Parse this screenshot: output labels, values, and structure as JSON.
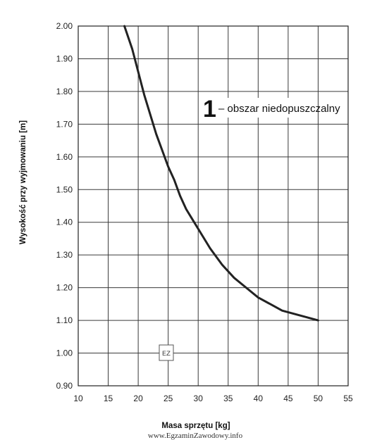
{
  "chart_data": {
    "type": "line",
    "title": "",
    "xlabel": "Masa sprzętu [kg]",
    "ylabel": "Wysokość przy wyjmowaniu [m]",
    "xlim": [
      10,
      55
    ],
    "ylim": [
      0.9,
      2.0
    ],
    "xticks": [
      10,
      15,
      20,
      25,
      30,
      35,
      40,
      45,
      50,
      55
    ],
    "yticks": [
      0.9,
      1.0,
      1.1,
      1.2,
      1.3,
      1.4,
      1.5,
      1.6,
      1.7,
      1.8,
      1.9,
      2.0
    ],
    "xtick_labels": [
      "10",
      "15",
      "20",
      "25",
      "30",
      "35",
      "40",
      "45",
      "50",
      "55"
    ],
    "ytick_labels": [
      "0.90",
      "1.00",
      "1.10",
      "1.20",
      "1.30",
      "1.40",
      "1.50",
      "1.60",
      "1.70",
      "1.80",
      "1.90",
      "2.00"
    ],
    "grid": true,
    "series": [
      {
        "x": [
          17.7,
          19,
          20,
          21,
          22,
          23,
          24,
          25,
          26,
          27,
          28,
          29,
          30,
          32,
          34,
          36,
          38,
          40,
          42,
          44,
          46,
          48,
          50
        ],
        "y": [
          2.0,
          1.93,
          1.86,
          1.79,
          1.73,
          1.67,
          1.62,
          1.57,
          1.53,
          1.48,
          1.44,
          1.41,
          1.38,
          1.32,
          1.27,
          1.23,
          1.2,
          1.17,
          1.15,
          1.13,
          1.12,
          1.11,
          1.1
        ]
      }
    ],
    "annotations": [
      {
        "number": "1",
        "text": "– obszar niedopuszczalny"
      }
    ]
  },
  "watermark": {
    "text": "www.EgzaminZawodowy.info",
    "logo_text": "EZ"
  },
  "colors": {
    "grid": "#3a3a3a",
    "curve": "#222222",
    "frame": "#222222"
  }
}
